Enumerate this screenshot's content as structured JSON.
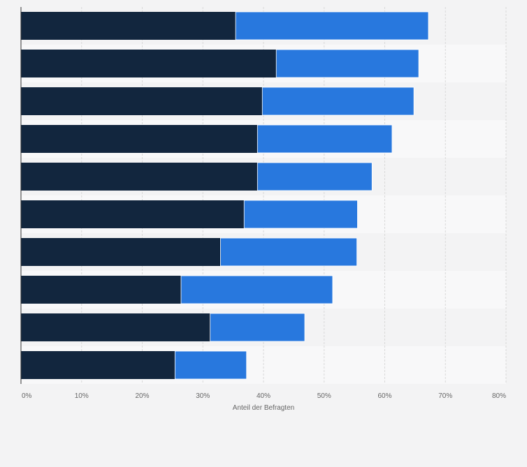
{
  "chart_data": {
    "type": "bar",
    "orientation": "horizontal",
    "stacked": true,
    "xlabel": "Anteil der Befragten",
    "ylabel": "",
    "xlim": [
      0,
      80
    ],
    "x_ticks": [
      "0%",
      "10%",
      "20%",
      "30%",
      "40%",
      "50%",
      "60%",
      "70%",
      "80%"
    ],
    "grid": true,
    "legend": "none",
    "categories": [
      "",
      "",
      "",
      "",
      "",
      "",
      "",
      "",
      "",
      ""
    ],
    "series": [
      {
        "color": "#12263e",
        "values": [
          35.4,
          42.1,
          39.8,
          39.0,
          39.0,
          36.8,
          32.9,
          26.4,
          31.2,
          25.4
        ]
      },
      {
        "color": "#2878de",
        "values": [
          31.8,
          23.5,
          25.0,
          22.2,
          18.9,
          18.7,
          22.5,
          25.0,
          15.6,
          11.8
        ]
      }
    ]
  }
}
